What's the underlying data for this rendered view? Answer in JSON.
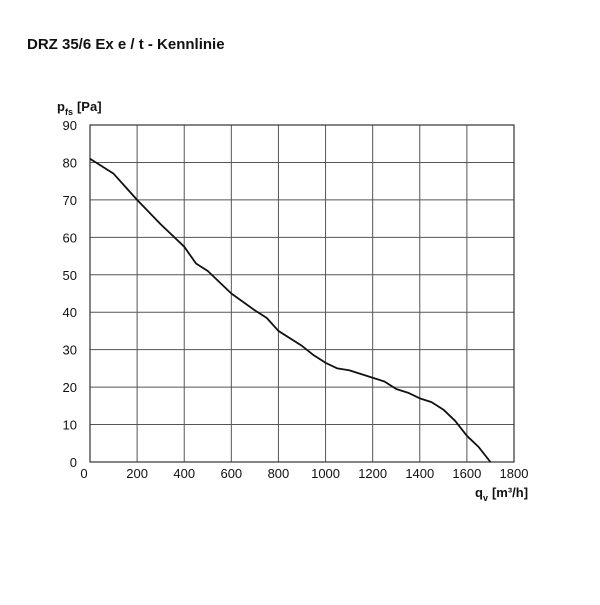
{
  "chart_data": {
    "type": "line",
    "title": "DRZ 35/6 Ex e / t - Kennlinie",
    "y_label": {
      "symbol": "p",
      "subscript": "fs",
      "unit": "[Pa]"
    },
    "x_label": {
      "symbol": "q",
      "subscript": "v",
      "unit": "[m³/h]"
    },
    "x": [
      0,
      100,
      200,
      300,
      400,
      450,
      500,
      600,
      700,
      750,
      800,
      900,
      950,
      1000,
      1050,
      1100,
      1150,
      1200,
      1250,
      1300,
      1350,
      1400,
      1450,
      1500,
      1550,
      1600,
      1650,
      1700
    ],
    "series": [
      {
        "color": "#111111",
        "values": [
          81,
          77,
          70,
          63.5,
          57.5,
          53,
          51,
          45,
          40.5,
          38.5,
          35,
          31,
          28.5,
          26.5,
          25,
          24.5,
          23.5,
          22.5,
          21.5,
          19.5,
          18.5,
          17,
          16,
          14,
          11,
          7,
          4,
          0
        ]
      }
    ],
    "xlim": [
      0,
      1800
    ],
    "xticks": [
      0,
      200,
      400,
      600,
      800,
      1000,
      1200,
      1400,
      1600,
      1800
    ],
    "ylim": [
      0,
      90
    ],
    "yticks": [
      0,
      10,
      20,
      30,
      40,
      50,
      60,
      70,
      80,
      90
    ],
    "grid": true
  }
}
